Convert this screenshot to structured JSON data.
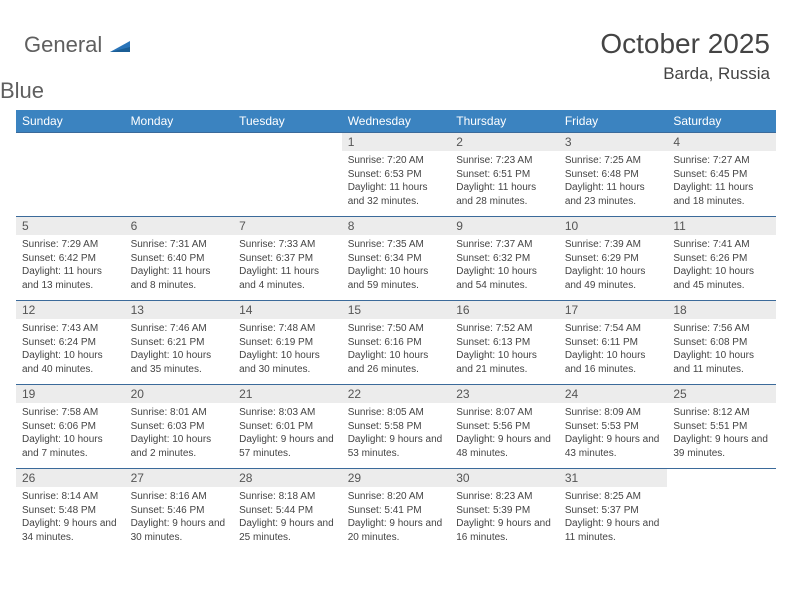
{
  "logo": {
    "word1": "General",
    "word2": "Blue",
    "accent_color": "#2a74b8",
    "text_color": "#5f5f5f"
  },
  "title": "October 2025",
  "location": "Barda, Russia",
  "colors": {
    "header_bg": "#3b83c0",
    "header_text": "#ffffff",
    "row_border": "#3b6a9a",
    "daynum_bg": "#ececec",
    "body_text": "#444444"
  },
  "weekdays": [
    "Sunday",
    "Monday",
    "Tuesday",
    "Wednesday",
    "Thursday",
    "Friday",
    "Saturday"
  ],
  "weeks": [
    [
      {
        "day": "",
        "sunrise": "",
        "sunset": "",
        "daylight": ""
      },
      {
        "day": "",
        "sunrise": "",
        "sunset": "",
        "daylight": ""
      },
      {
        "day": "",
        "sunrise": "",
        "sunset": "",
        "daylight": ""
      },
      {
        "day": "1",
        "sunrise": "Sunrise: 7:20 AM",
        "sunset": "Sunset: 6:53 PM",
        "daylight": "Daylight: 11 hours and 32 minutes."
      },
      {
        "day": "2",
        "sunrise": "Sunrise: 7:23 AM",
        "sunset": "Sunset: 6:51 PM",
        "daylight": "Daylight: 11 hours and 28 minutes."
      },
      {
        "day": "3",
        "sunrise": "Sunrise: 7:25 AM",
        "sunset": "Sunset: 6:48 PM",
        "daylight": "Daylight: 11 hours and 23 minutes."
      },
      {
        "day": "4",
        "sunrise": "Sunrise: 7:27 AM",
        "sunset": "Sunset: 6:45 PM",
        "daylight": "Daylight: 11 hours and 18 minutes."
      }
    ],
    [
      {
        "day": "5",
        "sunrise": "Sunrise: 7:29 AM",
        "sunset": "Sunset: 6:42 PM",
        "daylight": "Daylight: 11 hours and 13 minutes."
      },
      {
        "day": "6",
        "sunrise": "Sunrise: 7:31 AM",
        "sunset": "Sunset: 6:40 PM",
        "daylight": "Daylight: 11 hours and 8 minutes."
      },
      {
        "day": "7",
        "sunrise": "Sunrise: 7:33 AM",
        "sunset": "Sunset: 6:37 PM",
        "daylight": "Daylight: 11 hours and 4 minutes."
      },
      {
        "day": "8",
        "sunrise": "Sunrise: 7:35 AM",
        "sunset": "Sunset: 6:34 PM",
        "daylight": "Daylight: 10 hours and 59 minutes."
      },
      {
        "day": "9",
        "sunrise": "Sunrise: 7:37 AM",
        "sunset": "Sunset: 6:32 PM",
        "daylight": "Daylight: 10 hours and 54 minutes."
      },
      {
        "day": "10",
        "sunrise": "Sunrise: 7:39 AM",
        "sunset": "Sunset: 6:29 PM",
        "daylight": "Daylight: 10 hours and 49 minutes."
      },
      {
        "day": "11",
        "sunrise": "Sunrise: 7:41 AM",
        "sunset": "Sunset: 6:26 PM",
        "daylight": "Daylight: 10 hours and 45 minutes."
      }
    ],
    [
      {
        "day": "12",
        "sunrise": "Sunrise: 7:43 AM",
        "sunset": "Sunset: 6:24 PM",
        "daylight": "Daylight: 10 hours and 40 minutes."
      },
      {
        "day": "13",
        "sunrise": "Sunrise: 7:46 AM",
        "sunset": "Sunset: 6:21 PM",
        "daylight": "Daylight: 10 hours and 35 minutes."
      },
      {
        "day": "14",
        "sunrise": "Sunrise: 7:48 AM",
        "sunset": "Sunset: 6:19 PM",
        "daylight": "Daylight: 10 hours and 30 minutes."
      },
      {
        "day": "15",
        "sunrise": "Sunrise: 7:50 AM",
        "sunset": "Sunset: 6:16 PM",
        "daylight": "Daylight: 10 hours and 26 minutes."
      },
      {
        "day": "16",
        "sunrise": "Sunrise: 7:52 AM",
        "sunset": "Sunset: 6:13 PM",
        "daylight": "Daylight: 10 hours and 21 minutes."
      },
      {
        "day": "17",
        "sunrise": "Sunrise: 7:54 AM",
        "sunset": "Sunset: 6:11 PM",
        "daylight": "Daylight: 10 hours and 16 minutes."
      },
      {
        "day": "18",
        "sunrise": "Sunrise: 7:56 AM",
        "sunset": "Sunset: 6:08 PM",
        "daylight": "Daylight: 10 hours and 11 minutes."
      }
    ],
    [
      {
        "day": "19",
        "sunrise": "Sunrise: 7:58 AM",
        "sunset": "Sunset: 6:06 PM",
        "daylight": "Daylight: 10 hours and 7 minutes."
      },
      {
        "day": "20",
        "sunrise": "Sunrise: 8:01 AM",
        "sunset": "Sunset: 6:03 PM",
        "daylight": "Daylight: 10 hours and 2 minutes."
      },
      {
        "day": "21",
        "sunrise": "Sunrise: 8:03 AM",
        "sunset": "Sunset: 6:01 PM",
        "daylight": "Daylight: 9 hours and 57 minutes."
      },
      {
        "day": "22",
        "sunrise": "Sunrise: 8:05 AM",
        "sunset": "Sunset: 5:58 PM",
        "daylight": "Daylight: 9 hours and 53 minutes."
      },
      {
        "day": "23",
        "sunrise": "Sunrise: 8:07 AM",
        "sunset": "Sunset: 5:56 PM",
        "daylight": "Daylight: 9 hours and 48 minutes."
      },
      {
        "day": "24",
        "sunrise": "Sunrise: 8:09 AM",
        "sunset": "Sunset: 5:53 PM",
        "daylight": "Daylight: 9 hours and 43 minutes."
      },
      {
        "day": "25",
        "sunrise": "Sunrise: 8:12 AM",
        "sunset": "Sunset: 5:51 PM",
        "daylight": "Daylight: 9 hours and 39 minutes."
      }
    ],
    [
      {
        "day": "26",
        "sunrise": "Sunrise: 8:14 AM",
        "sunset": "Sunset: 5:48 PM",
        "daylight": "Daylight: 9 hours and 34 minutes."
      },
      {
        "day": "27",
        "sunrise": "Sunrise: 8:16 AM",
        "sunset": "Sunset: 5:46 PM",
        "daylight": "Daylight: 9 hours and 30 minutes."
      },
      {
        "day": "28",
        "sunrise": "Sunrise: 8:18 AM",
        "sunset": "Sunset: 5:44 PM",
        "daylight": "Daylight: 9 hours and 25 minutes."
      },
      {
        "day": "29",
        "sunrise": "Sunrise: 8:20 AM",
        "sunset": "Sunset: 5:41 PM",
        "daylight": "Daylight: 9 hours and 20 minutes."
      },
      {
        "day": "30",
        "sunrise": "Sunrise: 8:23 AM",
        "sunset": "Sunset: 5:39 PM",
        "daylight": "Daylight: 9 hours and 16 minutes."
      },
      {
        "day": "31",
        "sunrise": "Sunrise: 8:25 AM",
        "sunset": "Sunset: 5:37 PM",
        "daylight": "Daylight: 9 hours and 11 minutes."
      },
      {
        "day": "",
        "sunrise": "",
        "sunset": "",
        "daylight": ""
      }
    ]
  ]
}
